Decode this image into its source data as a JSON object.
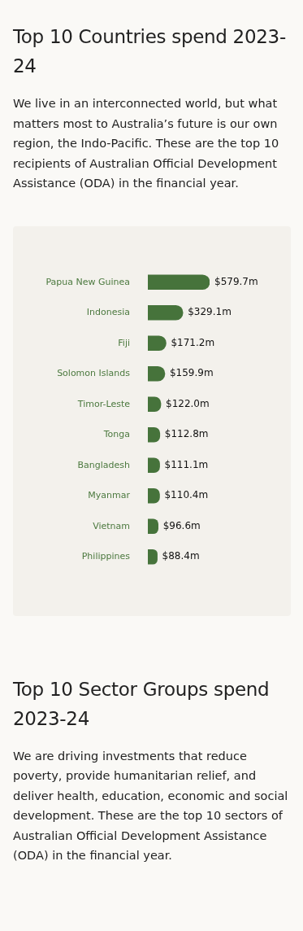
{
  "chart_data": {
    "type": "bar",
    "orientation": "horizontal",
    "title": "Top 10 Countries spend 2023-24",
    "subtitle": "We live in an interconnected world, but what matters most to Australia’s future is our own region, the Indo-Pacific. These are the top 10 recipients of Australian Official Development Assistance (ODA) in the financial year.",
    "categories": [
      "Papua New Guinea",
      "Indonesia",
      "Fiji",
      "Solomon Islands",
      "Timor-Leste",
      "Tonga",
      "Bangladesh",
      "Myanmar",
      "Vietnam",
      "Philippines"
    ],
    "values": [
      579.7,
      329.1,
      171.2,
      159.9,
      122.0,
      112.8,
      111.1,
      110.4,
      96.6,
      88.4
    ],
    "value_labels": [
      "$579.7m",
      "$329.1m",
      "$171.2m",
      "$159.9m",
      "$122.0m",
      "$112.8m",
      "$111.1m",
      "$110.4m",
      "$96.6m",
      "$88.4m"
    ],
    "color": "#46733b",
    "annotations": [
      "Top 10 Sector Groups spend 2023-24",
      "We are driving investments that reduce poverty, provide humanitarian relief, and deliver health, education, economic and social development. These are the top 10 sectors of Australian Official Development Assistance (ODA) in the financial year."
    ]
  }
}
